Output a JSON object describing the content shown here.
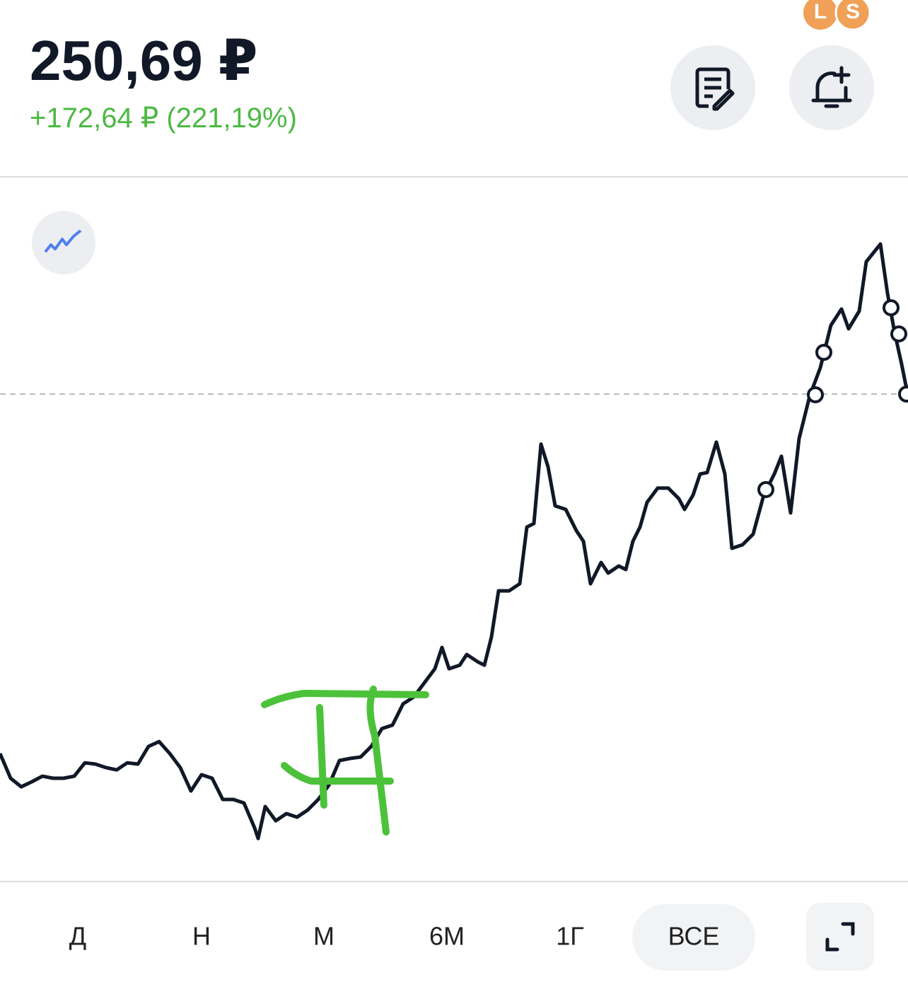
{
  "header": {
    "price": "250,69 ₽",
    "change": "+172,64 ₽ (221,19%)",
    "badges": [
      "L",
      "S"
    ]
  },
  "chart_data": {
    "type": "line",
    "color": "#111827",
    "xlim": [
      0,
      1284
    ],
    "ylim": [
      20,
      340
    ],
    "x": [
      0,
      15,
      30,
      45,
      60,
      75,
      90,
      105,
      120,
      135,
      150,
      165,
      180,
      195,
      210,
      225,
      240,
      255,
      270,
      285,
      300,
      315,
      330,
      345,
      360,
      365,
      375,
      390,
      405,
      420,
      435,
      450,
      465,
      480,
      495,
      510,
      525,
      540,
      555,
      570,
      585,
      600,
      615,
      625,
      635,
      650,
      660,
      675,
      685,
      695,
      705,
      720,
      735,
      745,
      755,
      765,
      775,
      785,
      800,
      815,
      825,
      835,
      850,
      860,
      875,
      885,
      895,
      905,
      915,
      930,
      945,
      960,
      968,
      980,
      990,
      1000,
      1013,
      1025,
      1035,
      1050,
      1065,
      1080,
      1095,
      1105,
      1118,
      1130,
      1145,
      1160,
      1175,
      1190,
      1200,
      1215,
      1225,
      1245,
      1255,
      1265,
      1275,
      1284
    ],
    "values": [
      78.1,
      66.2,
      62.1,
      64.5,
      67.2,
      66.2,
      66.2,
      67.2,
      73.6,
      73.0,
      71.3,
      70.2,
      73.6,
      73.0,
      81.5,
      83.8,
      78.1,
      71.3,
      60.1,
      67.9,
      66.2,
      56.0,
      56.0,
      54.3,
      42.4,
      37.3,
      52.6,
      45.8,
      49.2,
      47.5,
      50.9,
      56.0,
      62.8,
      74.7,
      75.7,
      76.4,
      81.5,
      90.0,
      91.7,
      101.9,
      105.2,
      112.0,
      118.8,
      129.0,
      118.8,
      120.5,
      125.6,
      122.2,
      120.5,
      134.1,
      156.2,
      156.2,
      159.6,
      186.8,
      188.5,
      226.6,
      215.7,
      197.0,
      195.3,
      185.1,
      180.0,
      159.6,
      169.8,
      164.7,
      168.1,
      166.4,
      180.0,
      186.8,
      198.7,
      205.5,
      205.5,
      200.4,
      195.3,
      202.1,
      212.3,
      213.0,
      227.6,
      212.3,
      176.6,
      178.3,
      183.4,
      202.1,
      212.3,
      220.8,
      193.6,
      229.3,
      249.7,
      263.3,
      283.7,
      291.5,
      282.0,
      290.5,
      314.2,
      322.7,
      299.0,
      280.3,
      265.0,
      249.7
    ]
  },
  "tabs": [
    "Д",
    "Н",
    "М",
    "6М",
    "1Г",
    "ВСЕ"
  ]
}
